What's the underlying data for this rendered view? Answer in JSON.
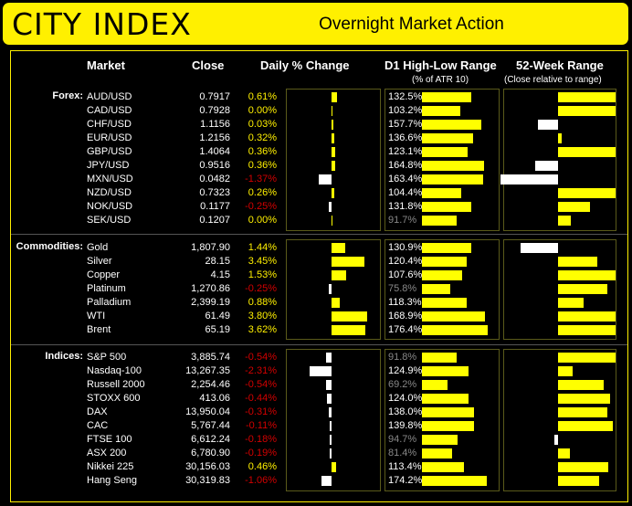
{
  "header": {
    "logo": "CITY INDEX",
    "title": "Overnight Market Action"
  },
  "columns": {
    "market": "Market",
    "close": "Close",
    "change": "Daily % Change",
    "range": "D1 High-Low Range",
    "range_sub": "(% of ATR 10)",
    "week52": "52-Week Range",
    "week52_sub": "(Close relative to range)"
  },
  "colors": {
    "yellow": "#fff000",
    "white": "#ffffff",
    "negative": "#d20000",
    "dim": "#888888",
    "bar": "#ffff00"
  },
  "sections": [
    {
      "label": "Forex:",
      "rows": [
        {
          "market": "AUD/USD",
          "close": "0.7917",
          "change": "0.61%",
          "change_value": 0.61,
          "range": "132.5%",
          "range_value": 132.5,
          "range_dim": false,
          "w52": 1.0
        },
        {
          "market": "CAD/USD",
          "close": "0.7928",
          "change": "0.00%",
          "change_value": 0.0,
          "range": "103.2%",
          "range_value": 103.2,
          "range_dim": false,
          "w52": 1.0
        },
        {
          "market": "CHF/USD",
          "close": "1.1156",
          "change": "0.03%",
          "change_value": 0.03,
          "range": "157.7%",
          "range_value": 157.7,
          "range_dim": false,
          "w52": -0.35
        },
        {
          "market": "EUR/USD",
          "close": "1.2156",
          "change": "0.32%",
          "change_value": 0.32,
          "range": "136.6%",
          "range_value": 136.6,
          "range_dim": false,
          "w52": 0.07
        },
        {
          "market": "GBP/USD",
          "close": "1.4064",
          "change": "0.36%",
          "change_value": 0.36,
          "range": "123.1%",
          "range_value": 123.1,
          "range_dim": false,
          "w52": 1.0
        },
        {
          "market": "JPY/USD",
          "close": "0.9516",
          "change": "0.36%",
          "change_value": 0.36,
          "range": "164.8%",
          "range_value": 164.8,
          "range_dim": false,
          "w52": -0.4
        },
        {
          "market": "MXN/USD",
          "close": "0.0482",
          "change": "-1.37%",
          "change_value": -1.37,
          "range": "163.4%",
          "range_value": 163.4,
          "range_dim": false,
          "w52": -1.0
        },
        {
          "market": "NZD/USD",
          "close": "0.7323",
          "change": "0.26%",
          "change_value": 0.26,
          "range": "104.4%",
          "range_value": 104.4,
          "range_dim": false,
          "w52": 1.0
        },
        {
          "market": "NOK/USD",
          "close": "0.1177",
          "change": "-0.25%",
          "change_value": -0.25,
          "range": "131.8%",
          "range_value": 131.8,
          "range_dim": false,
          "w52": 0.55
        },
        {
          "market": "SEK/USD",
          "close": "0.1207",
          "change": "0.00%",
          "change_value": 0.0,
          "range": "91.7%",
          "range_value": 91.7,
          "range_dim": true,
          "w52": 0.23
        }
      ]
    },
    {
      "label": "Commodities:",
      "rows": [
        {
          "market": "Gold",
          "close": "1,807.90",
          "change": "1.44%",
          "change_value": 1.44,
          "range": "130.9%",
          "range_value": 130.9,
          "range_dim": false,
          "w52": -0.65
        },
        {
          "market": "Silver",
          "close": "28.15",
          "change": "3.45%",
          "change_value": 3.45,
          "range": "120.4%",
          "range_value": 120.4,
          "range_dim": false,
          "w52": 0.68
        },
        {
          "market": "Copper",
          "close": "4.15",
          "change": "1.53%",
          "change_value": 1.53,
          "range": "107.6%",
          "range_value": 107.6,
          "range_dim": false,
          "w52": 1.0
        },
        {
          "market": "Platinum",
          "close": "1,270.86",
          "change": "-0.25%",
          "change_value": -0.25,
          "range": "75.8%",
          "range_value": 75.8,
          "range_dim": true,
          "w52": 0.85
        },
        {
          "market": "Palladium",
          "close": "2,399.19",
          "change": "0.88%",
          "change_value": 0.88,
          "range": "118.3%",
          "range_value": 118.3,
          "range_dim": false,
          "w52": 0.45
        },
        {
          "market": "WTI",
          "close": "61.49",
          "change": "3.80%",
          "change_value": 3.8,
          "range": "168.9%",
          "range_value": 168.9,
          "range_dim": false,
          "w52": 1.0
        },
        {
          "market": "Brent",
          "close": "65.19",
          "change": "3.62%",
          "change_value": 3.62,
          "range": "176.4%",
          "range_value": 176.4,
          "range_dim": false,
          "w52": 1.0
        }
      ]
    },
    {
      "label": "Indices:",
      "rows": [
        {
          "market": "S&P 500",
          "close": "3,885.74",
          "change": "-0.54%",
          "change_value": -0.54,
          "range": "91.8%",
          "range_value": 91.8,
          "range_dim": true,
          "w52": 1.0
        },
        {
          "market": "Nasdaq-100",
          "close": "13,267.35",
          "change": "-2.31%",
          "change_value": -2.31,
          "range": "124.9%",
          "range_value": 124.9,
          "range_dim": false,
          "w52": 0.25
        },
        {
          "market": "Russell 2000",
          "close": "2,254.46",
          "change": "-0.54%",
          "change_value": -0.54,
          "range": "69.2%",
          "range_value": 69.2,
          "range_dim": true,
          "w52": 0.8
        },
        {
          "market": "STOXX 600",
          "close": "413.06",
          "change": "-0.44%",
          "change_value": -0.44,
          "range": "124.0%",
          "range_value": 124.0,
          "range_dim": false,
          "w52": 0.9
        },
        {
          "market": "DAX",
          "close": "13,950.04",
          "change": "-0.31%",
          "change_value": -0.31,
          "range": "138.0%",
          "range_value": 138.0,
          "range_dim": false,
          "w52": 0.85
        },
        {
          "market": "CAC",
          "close": "5,767.44",
          "change": "-0.11%",
          "change_value": -0.11,
          "range": "139.8%",
          "range_value": 139.8,
          "range_dim": false,
          "w52": 0.95
        },
        {
          "market": "FTSE 100",
          "close": "6,612.24",
          "change": "-0.18%",
          "change_value": -0.18,
          "range": "94.7%",
          "range_value": 94.7,
          "range_dim": true,
          "w52": -0.07
        },
        {
          "market": "ASX 200",
          "close": "6,780.90",
          "change": "-0.19%",
          "change_value": -0.19,
          "range": "81.4%",
          "range_value": 81.4,
          "range_dim": true,
          "w52": 0.2
        },
        {
          "market": "Nikkei 225",
          "close": "30,156.03",
          "change": "0.46%",
          "change_value": 0.46,
          "range": "113.4%",
          "range_value": 113.4,
          "range_dim": false,
          "w52": 0.88
        },
        {
          "market": "Hang Seng",
          "close": "30,319.83",
          "change": "-1.06%",
          "change_value": -1.06,
          "range": "174.2%",
          "range_value": 174.2,
          "range_dim": false,
          "w52": 0.72
        }
      ]
    }
  ]
}
